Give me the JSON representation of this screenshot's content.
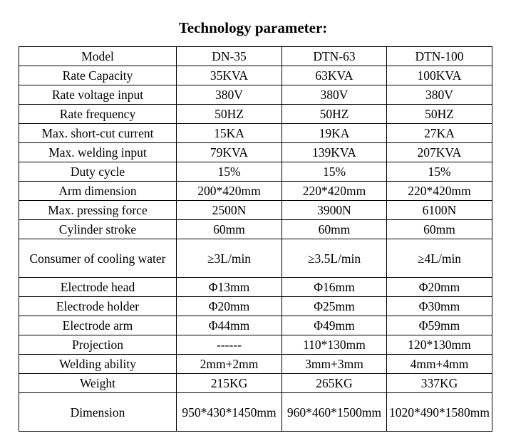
{
  "title": "Technology parameter:",
  "table": {
    "rows": [
      [
        "Model",
        "DN-35",
        "DTN-63",
        "DTN-100"
      ],
      [
        "Rate Capacity",
        "35KVA",
        "63KVA",
        "100KVA"
      ],
      [
        "Rate voltage input",
        "380V",
        "380V",
        "380V"
      ],
      [
        "Rate frequency",
        "50HZ",
        "50HZ",
        "50HZ"
      ],
      [
        "Max. short-cut current",
        "15KA",
        "19KA",
        "27KA"
      ],
      [
        "Max. welding input",
        "79KVA",
        "139KVA",
        "207KVA"
      ],
      [
        "Duty cycle",
        "15%",
        "15%",
        "15%"
      ],
      [
        "Arm dimension",
        "200*420mm",
        "220*420mm",
        "220*420mm"
      ],
      [
        "Max. pressing force",
        "2500N",
        "3900N",
        "6100N"
      ],
      [
        "Cylinder stroke",
        "60mm",
        "60mm",
        "60mm"
      ],
      [
        "Consumer of cooling water",
        "≥3L/min",
        "≥3.5L/min",
        "≥4L/min"
      ],
      [
        "Electrode head",
        "Φ13mm",
        "Φ16mm",
        "Φ20mm"
      ],
      [
        "Electrode holder",
        "Φ20mm",
        "Φ25mm",
        "Φ30mm"
      ],
      [
        "Electrode arm",
        "Φ44mm",
        "Φ49mm",
        "Φ59mm"
      ],
      [
        "Projection",
        "------",
        "110*130mm",
        "120*130mm"
      ],
      [
        "Welding ability",
        "2mm+2mm",
        "3mm+3mm",
        "4mm+4mm"
      ],
      [
        "Weight",
        "215KG",
        "265KG",
        "337KG"
      ],
      [
        "Dimension",
        "950*430*1450mm",
        "960*460*1500mm",
        "1020*490*1580mm"
      ]
    ]
  }
}
